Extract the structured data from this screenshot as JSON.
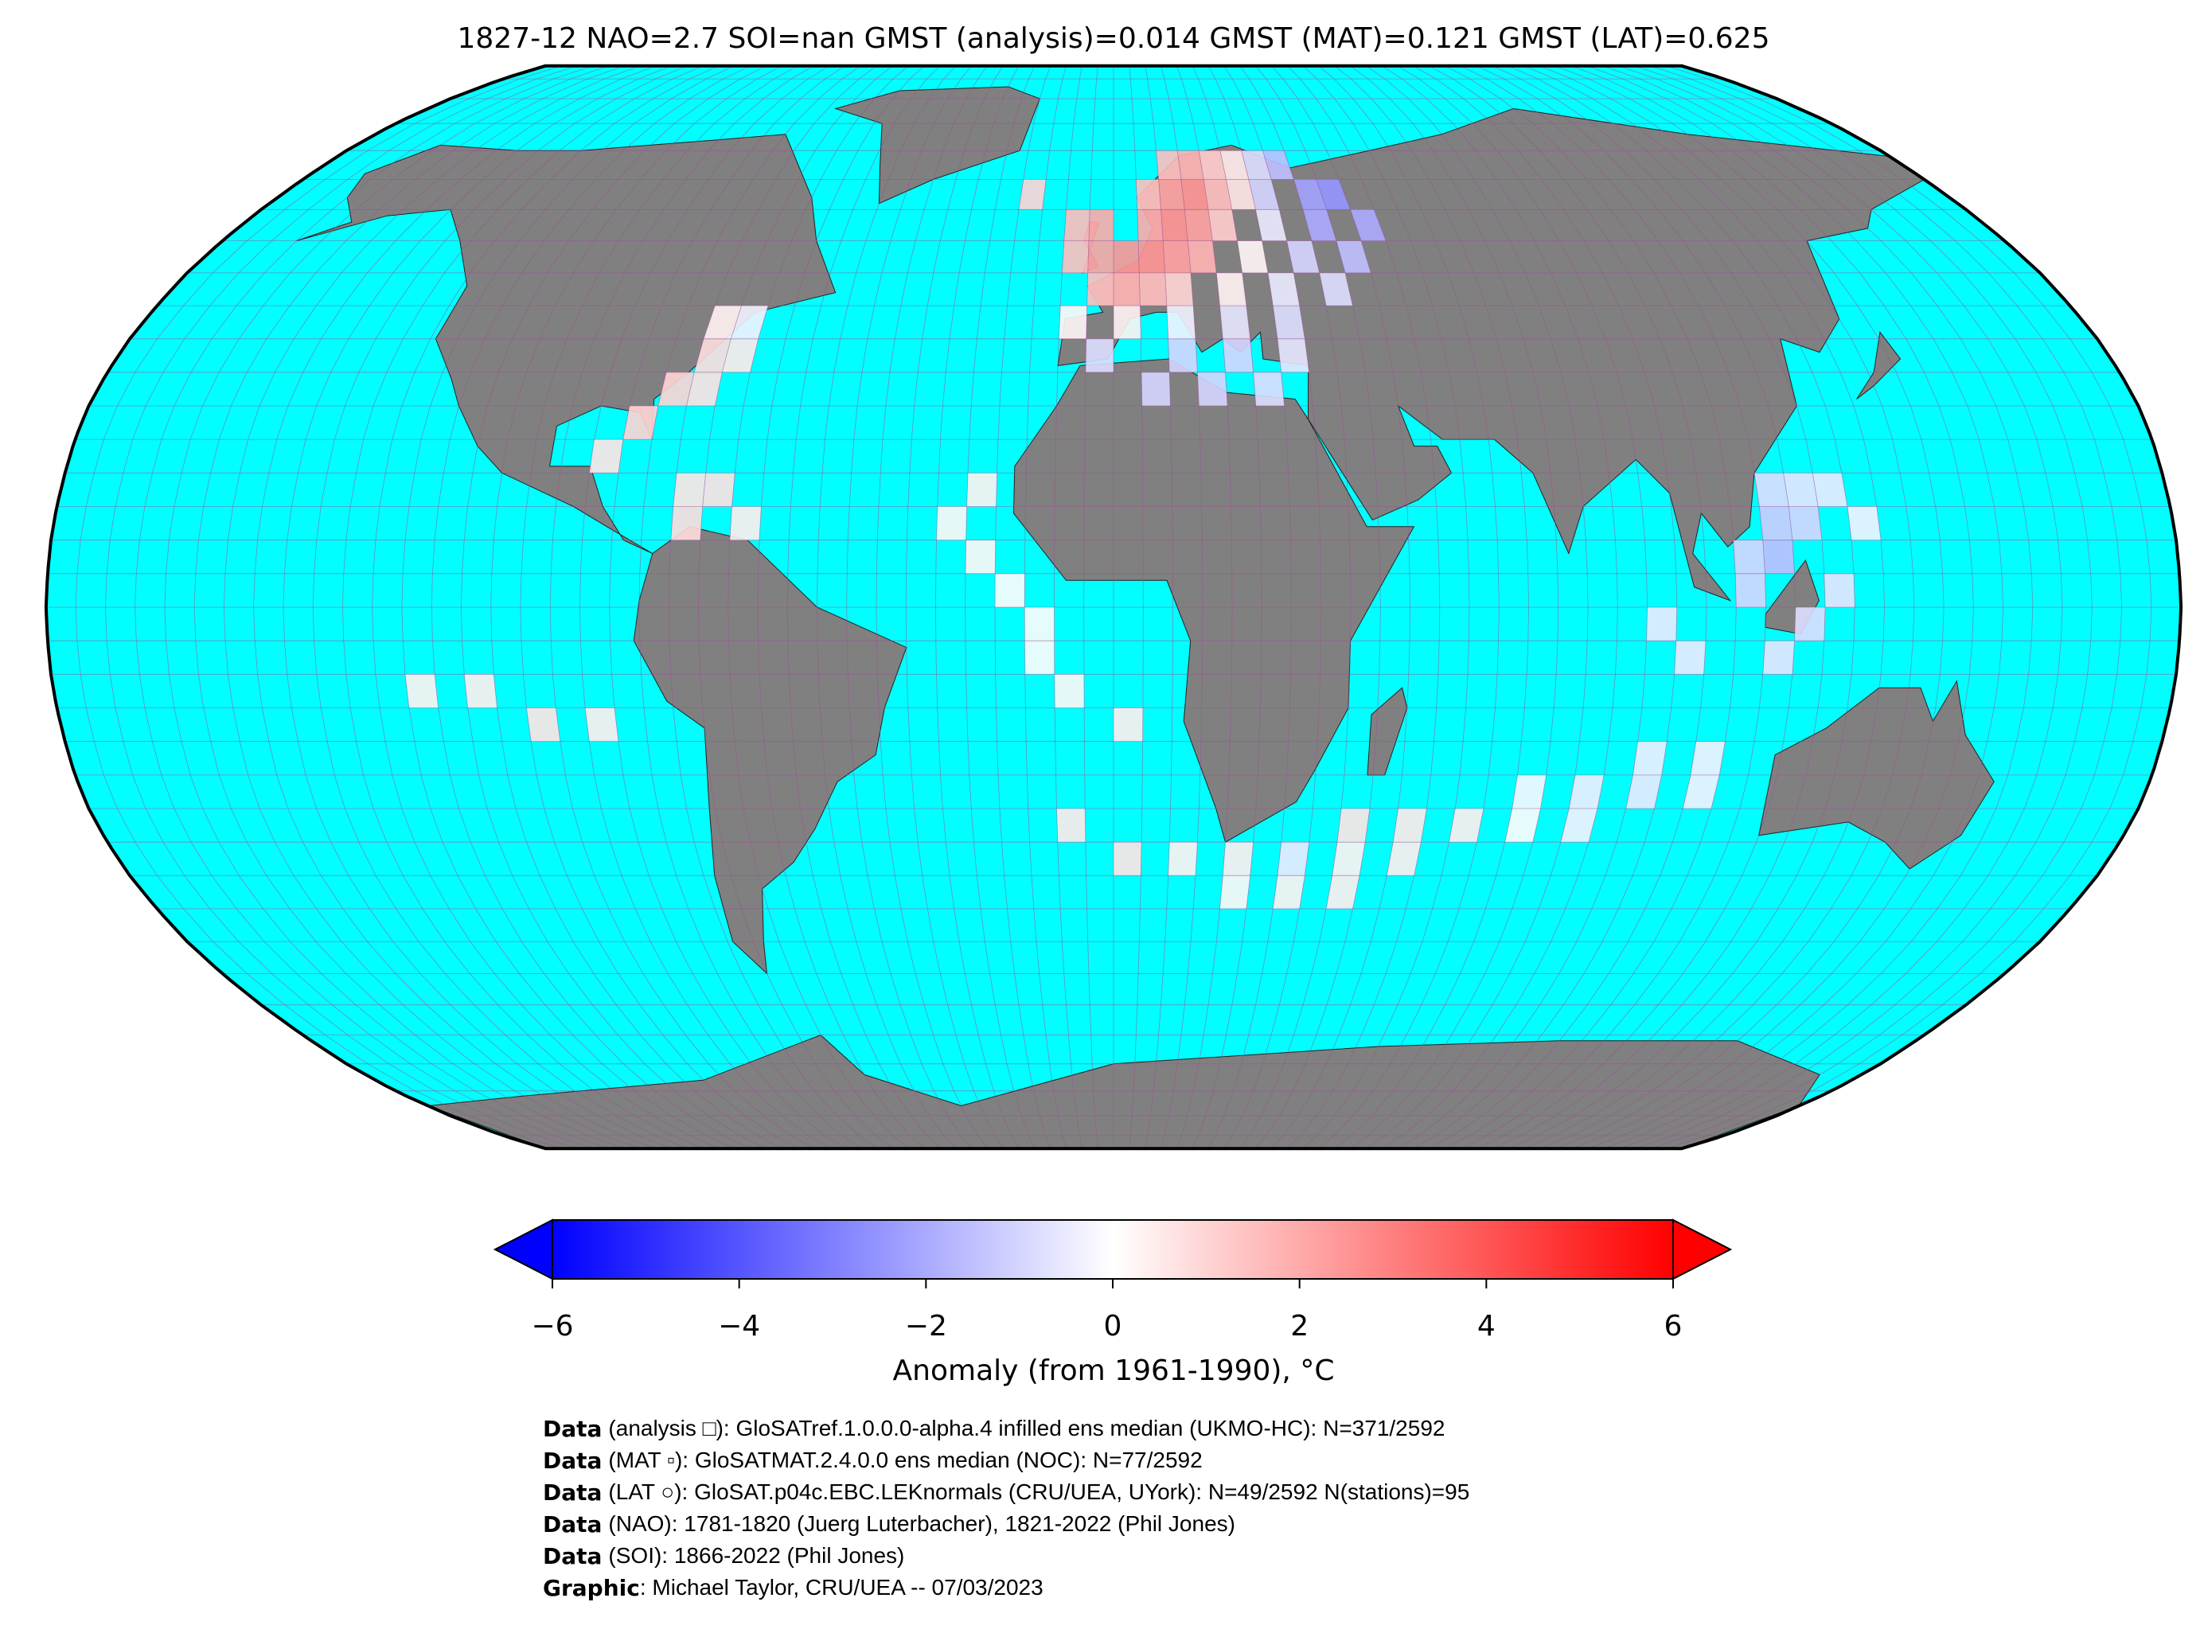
{
  "chart_data": {
    "type": "map",
    "title": "1827-12 NAO=2.7 SOI=nan GMST (analysis)=0.014 GMST (MAT)=0.121 GMST (LAT)=0.625",
    "cells": [
      {
        "lon": 12.5,
        "lat": 67.5,
        "value": 1.5
      },
      {
        "lon": 17.5,
        "lat": 67.5,
        "value": 1.8
      },
      {
        "lon": 22.5,
        "lat": 67.5,
        "value": 1.2
      },
      {
        "lon": 27.5,
        "lat": 67.5,
        "value": 0.5
      },
      {
        "lon": 32.5,
        "lat": 67.5,
        "value": -0.8
      },
      {
        "lon": 37.5,
        "lat": 67.5,
        "value": -1.5
      },
      {
        "lon": -17.5,
        "lat": 62.5,
        "value": 1.0
      },
      {
        "lon": 7.5,
        "lat": 62.5,
        "value": 1.5
      },
      {
        "lon": 12.5,
        "lat": 62.5,
        "value": 2.2
      },
      {
        "lon": 17.5,
        "lat": 62.5,
        "value": 2.5
      },
      {
        "lon": 22.5,
        "lat": 62.5,
        "value": 1.5
      },
      {
        "lon": 27.5,
        "lat": 62.5,
        "value": 0.6
      },
      {
        "lon": 32.5,
        "lat": 62.5,
        "value": -1.0
      },
      {
        "lon": 42.5,
        "lat": 62.5,
        "value": -2.2
      },
      {
        "lon": 47.5,
        "lat": 62.5,
        "value": -2.5
      },
      {
        "lon": -7.5,
        "lat": 57.5,
        "value": 1.6
      },
      {
        "lon": -2.5,
        "lat": 57.5,
        "value": 2.0
      },
      {
        "lon": 7.5,
        "lat": 57.5,
        "value": 2.0
      },
      {
        "lon": 12.5,
        "lat": 57.5,
        "value": 2.5
      },
      {
        "lon": 17.5,
        "lat": 57.5,
        "value": 2.2
      },
      {
        "lon": 22.5,
        "lat": 57.5,
        "value": 1.2
      },
      {
        "lon": 32.5,
        "lat": 57.5,
        "value": -0.5
      },
      {
        "lon": 42.5,
        "lat": 57.5,
        "value": -2.0
      },
      {
        "lon": 52.5,
        "lat": 57.5,
        "value": -2.0
      },
      {
        "lon": -7.5,
        "lat": 52.5,
        "value": 1.5
      },
      {
        "lon": -2.5,
        "lat": 52.5,
        "value": 2.2
      },
      {
        "lon": 2.5,
        "lat": 52.5,
        "value": 2.5
      },
      {
        "lon": 7.5,
        "lat": 52.5,
        "value": 2.5
      },
      {
        "lon": 12.5,
        "lat": 52.5,
        "value": 2.2
      },
      {
        "lon": 17.5,
        "lat": 52.5,
        "value": 1.8
      },
      {
        "lon": 27.5,
        "lat": 52.5,
        "value": 0.2
      },
      {
        "lon": 37.5,
        "lat": 52.5,
        "value": -1.0
      },
      {
        "lon": 47.5,
        "lat": 52.5,
        "value": -1.5
      },
      {
        "lon": -2.5,
        "lat": 47.5,
        "value": 1.5
      },
      {
        "lon": 2.5,
        "lat": 47.5,
        "value": 1.8
      },
      {
        "lon": 7.5,
        "lat": 47.5,
        "value": 1.5
      },
      {
        "lon": 12.5,
        "lat": 47.5,
        "value": 1.0
      },
      {
        "lon": 22.5,
        "lat": 47.5,
        "value": 0.3
      },
      {
        "lon": 32.5,
        "lat": 47.5,
        "value": -0.5
      },
      {
        "lon": 42.5,
        "lat": 47.5,
        "value": -0.8
      },
      {
        "lon": -7.5,
        "lat": 42.5,
        "value": 0.2
      },
      {
        "lon": 2.5,
        "lat": 42.5,
        "value": 0.3
      },
      {
        "lon": 12.5,
        "lat": 42.5,
        "value": -0.3
      },
      {
        "lon": 22.5,
        "lat": 42.5,
        "value": -0.6
      },
      {
        "lon": 32.5,
        "lat": 42.5,
        "value": -0.8
      },
      {
        "lon": -2.5,
        "lat": 37.5,
        "value": -0.8
      },
      {
        "lon": 12.5,
        "lat": 37.5,
        "value": -1.0
      },
      {
        "lon": 22.5,
        "lat": 37.5,
        "value": -1.0
      },
      {
        "lon": 32.5,
        "lat": 37.5,
        "value": -0.6
      },
      {
        "lon": 7.5,
        "lat": 32.5,
        "value": -1.0
      },
      {
        "lon": 17.5,
        "lat": 32.5,
        "value": -1.0
      },
      {
        "lon": 27.5,
        "lat": 32.5,
        "value": -0.8
      },
      {
        "lon": -67.5,
        "lat": 42.5,
        "value": -0.3
      },
      {
        "lon": -72.5,
        "lat": 42.5,
        "value": 0.3
      },
      {
        "lon": -72.5,
        "lat": 37.5,
        "value": 0.8
      },
      {
        "lon": -67.5,
        "lat": 37.5,
        "value": 0.5
      },
      {
        "lon": -77.5,
        "lat": 32.5,
        "value": 1.0
      },
      {
        "lon": -72.5,
        "lat": 32.5,
        "value": 0.7
      },
      {
        "lon": -82.5,
        "lat": 27.5,
        "value": 1.0
      },
      {
        "lon": -87.5,
        "lat": 22.5,
        "value": 0.6
      },
      {
        "lon": -72.5,
        "lat": 17.5,
        "value": 0.6
      },
      {
        "lon": -67.5,
        "lat": 17.5,
        "value": 0.7
      },
      {
        "lon": -72.5,
        "lat": 12.5,
        "value": 0.8
      },
      {
        "lon": -62.5,
        "lat": 12.5,
        "value": 0.4
      },
      {
        "lon": -22.5,
        "lat": 17.5,
        "value": 0.3
      },
      {
        "lon": -27.5,
        "lat": 12.5,
        "value": 0.2
      },
      {
        "lon": -22.5,
        "lat": 7.5,
        "value": 0.2
      },
      {
        "lon": -17.5,
        "lat": 2.5,
        "value": 0.1
      },
      {
        "lon": -12.5,
        "lat": -2.5,
        "value": 0.1
      },
      {
        "lon": -12.5,
        "lat": -7.5,
        "value": 0.1
      },
      {
        "lon": -7.5,
        "lat": -12.5,
        "value": 0.2
      },
      {
        "lon": 2.5,
        "lat": -17.5,
        "value": 0.4
      },
      {
        "lon": -117.5,
        "lat": -12.5,
        "value": 0.3
      },
      {
        "lon": -107.5,
        "lat": -12.5,
        "value": 0.4
      },
      {
        "lon": -97.5,
        "lat": -17.5,
        "value": 0.6
      },
      {
        "lon": -87.5,
        "lat": -17.5,
        "value": 0.4
      },
      {
        "lon": -7.5,
        "lat": -32.5,
        "value": 0.5
      },
      {
        "lon": 2.5,
        "lat": -37.5,
        "value": 0.6
      },
      {
        "lon": 12.5,
        "lat": -37.5,
        "value": 0.3
      },
      {
        "lon": 22.5,
        "lat": -37.5,
        "value": 0.4
      },
      {
        "lon": 32.5,
        "lat": -37.5,
        "value": -0.5
      },
      {
        "lon": 42.5,
        "lat": -37.5,
        "value": 0.3
      },
      {
        "lon": 52.5,
        "lat": -37.5,
        "value": 0.4
      },
      {
        "lon": 42.5,
        "lat": -32.5,
        "value": 0.6
      },
      {
        "lon": 52.5,
        "lat": -32.5,
        "value": 0.5
      },
      {
        "lon": 62.5,
        "lat": -32.5,
        "value": 0.4
      },
      {
        "lon": 72.5,
        "lat": -32.5,
        "value": 0.1
      },
      {
        "lon": 82.5,
        "lat": -32.5,
        "value": -0.3
      },
      {
        "lon": 72.5,
        "lat": -27.5,
        "value": -0.2
      },
      {
        "lon": 82.5,
        "lat": -27.5,
        "value": -0.4
      },
      {
        "lon": 92.5,
        "lat": -27.5,
        "value": -0.5
      },
      {
        "lon": 102.5,
        "lat": -27.5,
        "value": -0.3
      },
      {
        "lon": 92.5,
        "lat": -22.5,
        "value": -0.4
      },
      {
        "lon": 102.5,
        "lat": -22.5,
        "value": -0.3
      },
      {
        "lon": 22.5,
        "lat": -42.5,
        "value": 0.2
      },
      {
        "lon": 32.5,
        "lat": -42.5,
        "value": 0.3
      },
      {
        "lon": 42.5,
        "lat": -42.5,
        "value": 0.4
      },
      {
        "lon": 112.5,
        "lat": 17.5,
        "value": -0.8
      },
      {
        "lon": 117.5,
        "lat": 17.5,
        "value": -0.6
      },
      {
        "lon": 122.5,
        "lat": 17.5,
        "value": -0.5
      },
      {
        "lon": 112.5,
        "lat": 12.5,
        "value": -1.2
      },
      {
        "lon": 117.5,
        "lat": 12.5,
        "value": -1.0
      },
      {
        "lon": 127.5,
        "lat": 12.5,
        "value": -0.3
      },
      {
        "lon": 107.5,
        "lat": 7.5,
        "value": -1.0
      },
      {
        "lon": 112.5,
        "lat": 7.5,
        "value": -1.5
      },
      {
        "lon": 107.5,
        "lat": 2.5,
        "value": -1.0
      },
      {
        "lon": 122.5,
        "lat": 2.5,
        "value": -0.6
      },
      {
        "lon": 92.5,
        "lat": -2.5,
        "value": -0.5
      },
      {
        "lon": 117.5,
        "lat": -2.5,
        "value": -0.8
      },
      {
        "lon": 97.5,
        "lat": -7.5,
        "value": -0.5
      },
      {
        "lon": 112.5,
        "lat": -7.5,
        "value": -0.6
      }
    ],
    "colorbar": {
      "label": "Anomaly (from 1961-1990), °C",
      "lim": [
        -6,
        6
      ],
      "ticks": [
        {
          "value": -6,
          "label": "−6"
        },
        {
          "value": -4,
          "label": "−4"
        },
        {
          "value": -2,
          "label": "−2"
        },
        0,
        2,
        4,
        6
      ],
      "cmap": [
        "#0000ff",
        "#ffffff",
        "#ff0000"
      ]
    },
    "ocean_color": "#00ffff",
    "land_color": "#808080"
  },
  "credits": [
    {
      "bold": "Data",
      "text": "(analysis □): GloSATref.1.0.0.0-alpha.4 infilled ens median (UKMO-HC): N=371/2592"
    },
    {
      "bold": "Data",
      "text": "(MAT ▫): GloSATMAT.2.4.0.0 ens median (NOC): N=77/2592"
    },
    {
      "bold": "Data",
      "text": "(LAT ○): GloSAT.p04c.EBC.LEKnormals (CRU/UEA, UYork): N=49/2592 N(stations)=95"
    },
    {
      "bold": "Data",
      "text": "(NAO): 1781-1820 (Juerg Luterbacher), 1821-2022 (Phil Jones)"
    },
    {
      "bold": "Data",
      "text": "(SOI): 1866-2022 (Phil Jones)"
    },
    {
      "bold": "Graphic",
      "text": ": Michael Taylor, CRU/UEA -- 07/03/2023"
    }
  ]
}
